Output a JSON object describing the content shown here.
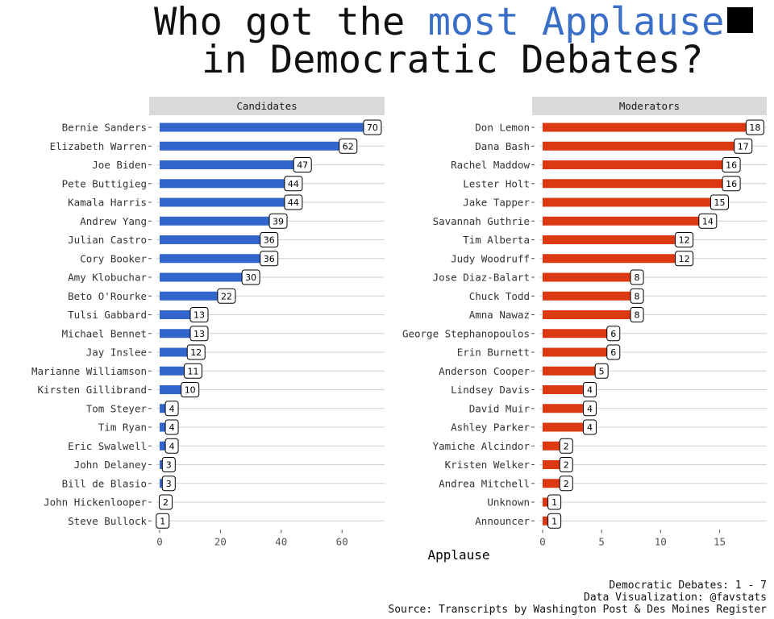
{
  "title": {
    "line1_before": "Who got the ",
    "line1_highlight": "most Applause",
    "line2": "in Democratic Debates?",
    "highlight_color": "#3a6fc8"
  },
  "chart_data": [
    {
      "type": "bar",
      "orientation": "horizontal",
      "title": "Candidates",
      "xlabel": "Applause",
      "color": "#3366cc",
      "xlim": [
        0,
        74
      ],
      "xticks": [
        0,
        20,
        40,
        60
      ],
      "categories": [
        "Bernie Sanders",
        "Elizabeth Warren",
        "Joe Biden",
        "Pete Buttigieg",
        "Kamala Harris",
        "Andrew Yang",
        "Julian Castro",
        "Cory Booker",
        "Amy Klobuchar",
        "Beto O'Rourke",
        "Tulsi Gabbard",
        "Michael Bennet",
        "Jay Inslee",
        "Marianne Williamson",
        "Kirsten Gillibrand",
        "Tom Steyer",
        "Tim Ryan",
        "Eric Swalwell",
        "John Delaney",
        "Bill de Blasio",
        "John Hickenlooper",
        "Steve Bullock"
      ],
      "values": [
        70,
        62,
        47,
        44,
        44,
        39,
        36,
        36,
        30,
        22,
        13,
        13,
        12,
        11,
        10,
        4,
        4,
        4,
        3,
        3,
        2,
        1
      ]
    },
    {
      "type": "bar",
      "orientation": "horizontal",
      "title": "Moderators",
      "xlabel": "Applause",
      "color": "#dc3912",
      "xlim": [
        0,
        19
      ],
      "xticks": [
        0,
        5,
        10,
        15
      ],
      "categories": [
        "Don Lemon",
        "Dana Bash",
        "Rachel Maddow",
        "Lester Holt",
        "Jake Tapper",
        "Savannah Guthrie",
        "Tim Alberta",
        "Judy Woodruff",
        "Jose Diaz-Balart",
        "Chuck Todd",
        "Amna Nawaz",
        "George Stephanopoulos",
        "Erin Burnett",
        "Anderson Cooper",
        "Lindsey Davis",
        "David Muir",
        "Ashley Parker",
        "Yamiche Alcindor",
        "Kristen Welker",
        "Andrea Mitchell",
        "Unknown",
        "Announcer"
      ],
      "values": [
        18,
        17,
        16,
        16,
        15,
        14,
        12,
        12,
        8,
        8,
        8,
        6,
        6,
        5,
        4,
        4,
        4,
        2,
        2,
        2,
        1,
        1
      ]
    }
  ],
  "footer": {
    "line1": "Democratic Debates: 1 - 7",
    "line2": "Data Visualization: @favstats",
    "line3": "Source: Transcripts by Washington Post & Des Moines Register"
  }
}
